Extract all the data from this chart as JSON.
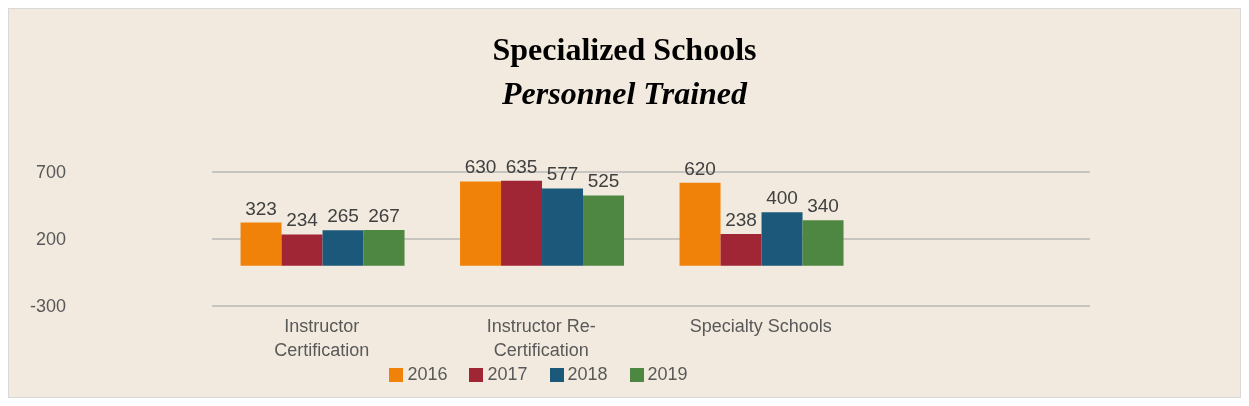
{
  "chart_data": {
    "type": "bar",
    "title": "Specialized Schools",
    "subtitle": "Personnel Trained",
    "categories": [
      "Instructor Certification",
      "Instructor Re-Certification",
      "Specialty Schools",
      null
    ],
    "series": [
      {
        "name": "2016",
        "color": "#f0820a",
        "values": [
          323,
          630,
          620,
          null
        ]
      },
      {
        "name": "2017",
        "color": "#a02535",
        "values": [
          234,
          635,
          238,
          null
        ]
      },
      {
        "name": "2018",
        "color": "#1c587a",
        "values": [
          265,
          577,
          400,
          null
        ]
      },
      {
        "name": "2019",
        "color": "#4e8742",
        "values": [
          267,
          525,
          340,
          null
        ]
      }
    ],
    "ylim": [
      -300,
      700
    ],
    "yticks": [
      -300,
      200,
      700
    ],
    "grid": "y",
    "legend": "bottom",
    "data_labels": true
  }
}
